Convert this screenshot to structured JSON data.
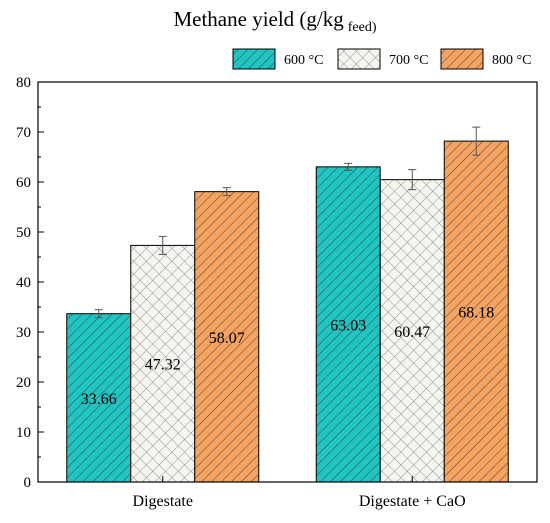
{
  "chart_data": {
    "type": "bar",
    "title": "Methane yield (g/kg",
    "title_subscript": "feed)",
    "categories": [
      "Digestate",
      "Digestate + CaO"
    ],
    "series": [
      {
        "name": "600 °C",
        "values": [
          33.66,
          63.03
        ],
        "errors": [
          0.8,
          0.7
        ],
        "color": "#20c4c0",
        "pattern": "diagonal-down"
      },
      {
        "name": "700 °C",
        "values": [
          47.32,
          60.47
        ],
        "errors": [
          1.8,
          2.0
        ],
        "color": "#f5f5ef",
        "pattern": "crosshatch"
      },
      {
        "name": "800 °C",
        "values": [
          58.07,
          68.18
        ],
        "errors": [
          0.8,
          2.8
        ],
        "color": "#f4a460",
        "pattern": "diagonal-down"
      }
    ],
    "data_labels": [
      [
        "33.66",
        "63.03"
      ],
      [
        "47.32",
        "60.47"
      ],
      [
        "58.07",
        "68.18"
      ]
    ],
    "ylim": [
      0,
      80
    ],
    "yticks": [
      0,
      10,
      20,
      30,
      40,
      50,
      60,
      70,
      80
    ],
    "xlabel": "",
    "ylabel": "",
    "grid": false,
    "legend_position": "top-right"
  }
}
